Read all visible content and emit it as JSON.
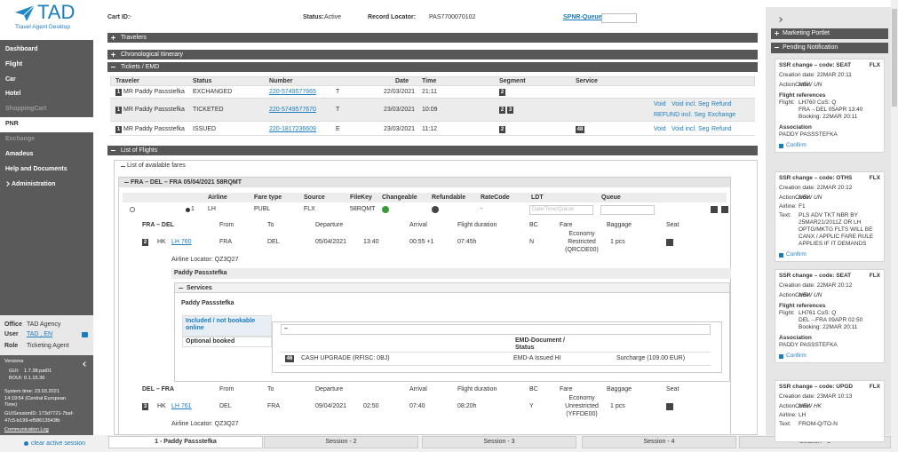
{
  "logo": {
    "brand": "TAD",
    "subtitle": "Travel Agent Desktop"
  },
  "menu": [
    "Dashboard",
    "Flight",
    "Car",
    "Hotel",
    "ShoppingCart",
    "PNR",
    "Exchange",
    "Amadeus",
    "Help and Documents",
    "Administration"
  ],
  "user_info": {
    "office_label": "Office",
    "office": "TAD Agency",
    "user_label": "User",
    "user": "TAD , EN",
    "role_label": "Role",
    "role": "Ticketing Agent"
  },
  "versions": {
    "title": "Versions",
    "gui_label": "GUI:",
    "gui": "1.7.38.pat01",
    "boui_label": "BOUI:",
    "boui": "0.1.15.36",
    "system_time": [
      "System time: 23.03.2021",
      "14:19:54 (Central European",
      "Time)"
    ],
    "session_id": [
      "GUISessionID: 173d7721-7baf-",
      "47c5-b199-ef58613543fb"
    ],
    "log": "Communication Log"
  },
  "clear_session": "clear active session",
  "header": {
    "cart_label": "Cart ID:",
    "cart": "-",
    "status_label": "Status:",
    "status": "Active",
    "locator_label": "Record Locator:",
    "locator": "PAS7700070102",
    "queue_label": "SPNR-Queue:"
  },
  "sections": [
    "Travelers",
    "Chronological Itinerary",
    "Tickets / EMD"
  ],
  "tickets": {
    "columns": [
      "Traveler",
      "Status",
      "Number",
      "Date",
      "Time",
      "Segment",
      "Service"
    ],
    "rows": [
      {
        "index": "1",
        "traveler": "MR Paddy Passstefka",
        "status": "EXCHANGED",
        "number": "220-5749577665",
        "type": "T",
        "date": "22/03/2021",
        "time": "21:11",
        "segments": [
          "2"
        ]
      },
      {
        "index": "1",
        "traveler": "MR Paddy Passstefka",
        "status": "TICKETED",
        "number": "220-5749577670",
        "type": "T",
        "date": "23/03/2021",
        "time": "10:09",
        "segments": [
          "2",
          "3"
        ],
        "actions": [
          "Void",
          "Void incl. Seg",
          "Refund",
          "REFUND incl. Seg",
          "Exchange"
        ]
      },
      {
        "index": "1",
        "traveler": "MR Paddy Passstefka",
        "status": "ISSUED",
        "number": "220-1817236609",
        "type": "E",
        "date": "23/03/2021",
        "time": "11:12",
        "segments": [
          "2"
        ],
        "service": "48",
        "actions": [
          "Void",
          "Void incl. Seg",
          "Refund"
        ]
      }
    ]
  },
  "flights": {
    "title": "List of Flights",
    "fares_title": "List of available fares",
    "offer": "FRA – DEL – FRA 05/04/2021 58RQMT",
    "fare_columns": [
      "Airline",
      "Fare type",
      "Source",
      "FileKey",
      "Changeable",
      "Refundable",
      "RateCode",
      "LDT",
      "Queue"
    ],
    "fare": {
      "index": "1",
      "airline": "LH",
      "fare_type": "PUBL",
      "source": "FLX",
      "file_key": "58RQMT",
      "rate_code": "-",
      "ldt_placeholder": "Date/Time/Queue"
    },
    "segment_columns": [
      "From",
      "To",
      "Departure",
      "Arrival",
      "Flight duration",
      "BC",
      "Fare",
      "Baggage",
      "Seat"
    ],
    "segments": [
      {
        "route": "FRA – DEL",
        "index": "2",
        "status": "HK",
        "flight": "LH 760",
        "from": "FRA",
        "to": "DEL",
        "date": "05/04/2021",
        "dep": "13:40",
        "arr": "00:55 +1",
        "duration": "07:45h",
        "bc": "N",
        "fare": [
          "Economy",
          "Restricted",
          "(QRCDE00)"
        ],
        "baggage": "1 pcs",
        "locator": "Airline Locator:  QZ3Q27"
      },
      {
        "route": "DEL – FRA",
        "index": "3",
        "status": "HK",
        "flight": "LH 761",
        "from": "DEL",
        "to": "FRA",
        "date": "09/04/2021",
        "dep": "02:50",
        "arr": "07:40",
        "duration": "08:20h",
        "bc": "Y",
        "fare": [
          "Economy",
          "Unrestricted",
          "(YFFDE00)"
        ],
        "baggage": "1 pcs",
        "locator": "Airline Locator:  QZ3Q27"
      }
    ],
    "traveler": "Paddy Passstefka",
    "services_title": "Services",
    "services_traveler": "Paddy Passstefka",
    "service_tabs": [
      "Included / not bookable online",
      "Optional booked"
    ],
    "emd_toggle": "–",
    "emd_header": [
      "EMD-Document /",
      "Status"
    ],
    "emd": {
      "index": "46",
      "name": "CASH UPGRADE (RFISC: 0BJ)",
      "status": "EMD-A Issued HI",
      "price": "Surcharge (109.00 EUR)"
    }
  },
  "right_panel": {
    "marketing": "Marketing Portlet",
    "pending": "Pending Notification",
    "notifications": [
      {
        "title": "SSR change – code: SEAT",
        "source": "FLX",
        "rows": [
          {
            "text": "Creation date: 22MAR 20:11"
          },
          {
            "label": "ActionCode:",
            "value": "NEW UN"
          },
          {
            "heading": "Flight references"
          },
          {
            "label": "Flight:",
            "lines": [
              "LH760   CoS: Q",
              "FRA→DEL 05APR 13:40",
              "Booking: 22MAR 20:11"
            ]
          },
          {
            "heading": "Association"
          },
          {
            "text": "PADDY PASSSTEFKA"
          }
        ],
        "confirm": "Confirm"
      },
      {
        "title": "SSR change – code: OTHS",
        "source": "FLX",
        "rows": [
          {
            "text": "Creation date: 22MAR 20:12"
          },
          {
            "label": "ActionCode:",
            "value": "NEW UN"
          },
          {
            "label": "Airline:",
            "lines": [
              "F1"
            ]
          },
          {
            "label": "Text:",
            "lines": [
              "PLS ADV TKT NBR BY",
              "25MAR21/2011Z OR LH",
              "OPTG/MKTG FLTS WILL BE",
              "CANX / APPLIC FARE RULE",
              "APPLIES IF IT DEMANDS"
            ]
          }
        ],
        "confirm": "Confirm"
      },
      {
        "title": "SSR change – code: SEAT",
        "source": "FLX",
        "rows": [
          {
            "text": "Creation date: 22MAR 20:12"
          },
          {
            "label": "ActionCode:",
            "value": "NEW UN"
          },
          {
            "heading": "Flight references"
          },
          {
            "label": "Flight:",
            "lines": [
              "LH761   CoS: Q",
              "DEL→FRA 09APR 02:50",
              "Booking: 22MAR 20:11"
            ]
          },
          {
            "heading": "Association"
          },
          {
            "text": "PADDY PASSSTEFKA"
          }
        ],
        "confirm": "Confirm"
      },
      {
        "title": "SSR change – code: UPGD",
        "source": "FLX",
        "rows": [
          {
            "text": "Creation date: 23MAR 10:13"
          },
          {
            "label": "ActionCode:",
            "value": "NEW HK"
          },
          {
            "label": "Airline:",
            "lines": [
              "LH"
            ]
          },
          {
            "label": "Text:",
            "lines": [
              "FROM-Q/TO-N"
            ]
          }
        ]
      }
    ]
  },
  "session_tabs": [
    "1 - Paddy Passstefka",
    "Session - 2",
    "Session - 3",
    "Session - 4",
    "Session - 5"
  ]
}
